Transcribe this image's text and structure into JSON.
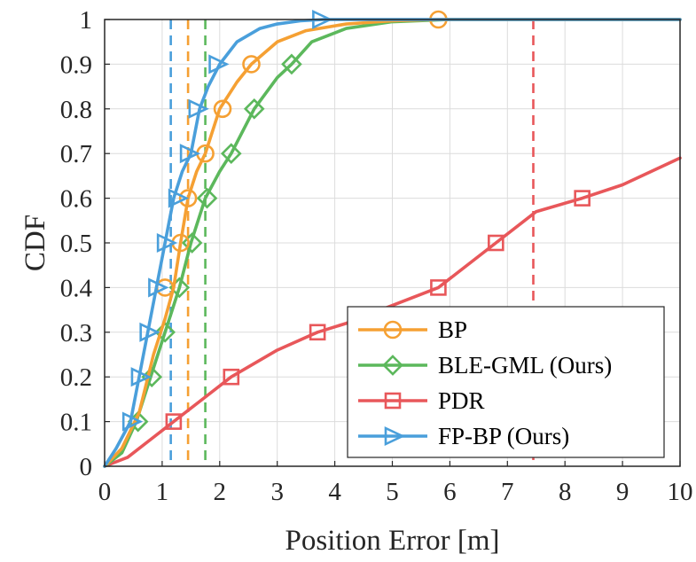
{
  "chart_data": {
    "type": "line",
    "title": "",
    "xlabel": "Position Error [m]",
    "ylabel": "CDF",
    "xlim": [
      0,
      10
    ],
    "ylim": [
      0,
      1
    ],
    "xticks": [
      "0",
      "1",
      "2",
      "3",
      "4",
      "5",
      "6",
      "7",
      "8",
      "9",
      "10"
    ],
    "yticks": [
      "0",
      "0.1",
      "0.2",
      "0.3",
      "0.4",
      "0.5",
      "0.6",
      "0.7",
      "0.8",
      "0.9",
      "1"
    ],
    "grid": true,
    "legend_position": "bottom-right",
    "series": [
      {
        "name": "BP",
        "color": "#F5A033",
        "marker": "circle",
        "x": [
          0,
          0.3,
          0.6,
          0.85,
          1.05,
          1.2,
          1.32,
          1.45,
          1.6,
          1.75,
          2.0,
          2.3,
          2.55,
          3.0,
          3.5,
          4.2,
          5.0,
          5.8,
          7.0,
          10.0
        ],
        "y": [
          0,
          0.04,
          0.12,
          0.25,
          0.33,
          0.4,
          0.5,
          0.6,
          0.66,
          0.7,
          0.8,
          0.86,
          0.9,
          0.95,
          0.975,
          0.99,
          0.997,
          1.0,
          1.0,
          1.0
        ],
        "marker_x": [
          1.05,
          1.32,
          1.45,
          1.75,
          2.05,
          2.55,
          5.8
        ],
        "marker_y": [
          0.4,
          0.5,
          0.6,
          0.7,
          0.8,
          0.9,
          1.0
        ]
      },
      {
        "name": "BLE-GML (Ours)",
        "color": "#5CB85C",
        "marker": "diamond",
        "x": [
          0,
          0.3,
          0.55,
          0.8,
          1.05,
          1.3,
          1.5,
          1.75,
          2.0,
          2.2,
          2.6,
          3.0,
          3.25,
          3.6,
          4.2,
          5.0,
          6.0,
          8.0,
          10.0
        ],
        "y": [
          0,
          0.03,
          0.1,
          0.2,
          0.3,
          0.4,
          0.5,
          0.6,
          0.66,
          0.7,
          0.8,
          0.87,
          0.9,
          0.95,
          0.98,
          0.995,
          1.0,
          1.0,
          1.0
        ],
        "marker_x": [
          0.58,
          0.82,
          1.05,
          1.3,
          1.52,
          1.78,
          2.2,
          2.6,
          3.25
        ],
        "marker_y": [
          0.1,
          0.2,
          0.3,
          0.4,
          0.5,
          0.6,
          0.7,
          0.8,
          0.9
        ]
      },
      {
        "name": "PDR",
        "color": "#E8575A",
        "marker": "square",
        "x": [
          0,
          0.4,
          0.8,
          1.2,
          1.8,
          2.2,
          3.0,
          3.7,
          4.2,
          5.0,
          5.8,
          6.8,
          7.5,
          8.3,
          9.0,
          10.0
        ],
        "y": [
          0,
          0.02,
          0.06,
          0.1,
          0.16,
          0.2,
          0.26,
          0.3,
          0.32,
          0.36,
          0.4,
          0.5,
          0.57,
          0.6,
          0.63,
          0.69
        ],
        "marker_x": [
          1.2,
          2.2,
          3.7,
          5.8,
          6.8,
          8.3
        ],
        "marker_y": [
          0.1,
          0.2,
          0.3,
          0.4,
          0.5,
          0.6
        ]
      },
      {
        "name": "FP-BP (Ours)",
        "color": "#4A9FDB",
        "marker": "triangle-right",
        "x": [
          0,
          0.2,
          0.45,
          0.6,
          0.75,
          0.9,
          1.05,
          1.2,
          1.35,
          1.5,
          1.65,
          1.8,
          2.0,
          2.3,
          2.7,
          3.0,
          3.4,
          3.8,
          10.0
        ],
        "y": [
          0,
          0.04,
          0.1,
          0.2,
          0.3,
          0.4,
          0.5,
          0.6,
          0.66,
          0.7,
          0.8,
          0.85,
          0.9,
          0.95,
          0.98,
          0.99,
          0.997,
          1.0,
          1.0
        ],
        "marker_x": [
          0.45,
          0.6,
          0.75,
          0.9,
          1.05,
          1.25,
          1.45,
          1.6,
          1.95,
          3.75
        ],
        "marker_y": [
          0.1,
          0.2,
          0.3,
          0.4,
          0.5,
          0.6,
          0.7,
          0.8,
          0.9,
          1.0
        ]
      }
    ],
    "vertical_lines": [
      {
        "x": 1.15,
        "color": "#4A9FDB"
      },
      {
        "x": 1.45,
        "color": "#F5A033"
      },
      {
        "x": 1.75,
        "color": "#5CB85C"
      },
      {
        "x": 7.45,
        "color": "#E8575A"
      }
    ]
  }
}
